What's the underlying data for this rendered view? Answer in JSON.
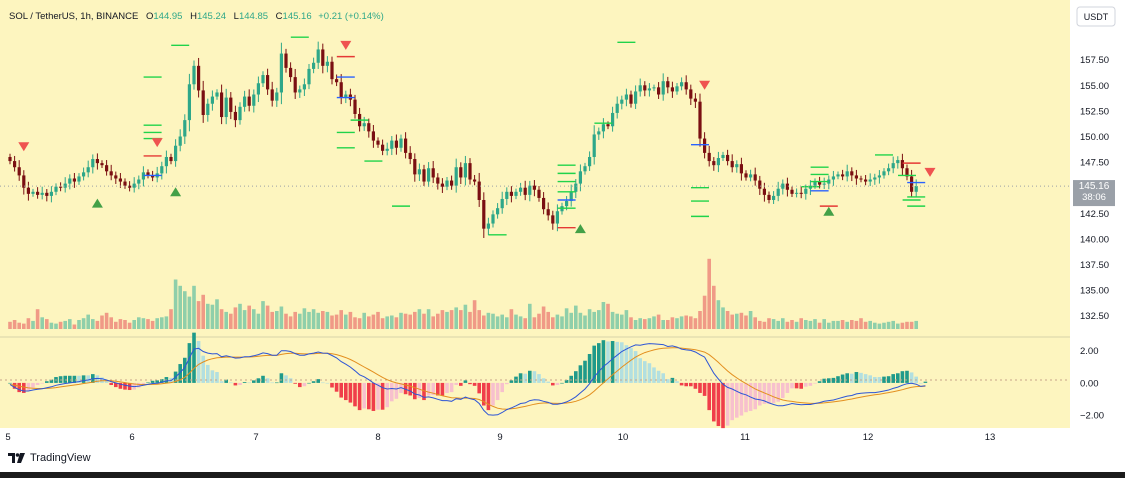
{
  "header": {
    "symbol": "SOL / TetherUS, 1h, BINANCE",
    "open_label": "O",
    "open": "144.95",
    "high_label": "H",
    "high": "145.24",
    "low_label": "L",
    "low": "144.85",
    "close_label": "C",
    "close": "145.16",
    "change": "+0.21 (+0.14%)"
  },
  "currency_button": "USDT",
  "price_tag": {
    "price": "145.16",
    "countdown": "38:06"
  },
  "brand": "TradingView",
  "colors": {
    "background": "#fdf5bf",
    "bull": "#2ea789",
    "bear": "#7a0f12",
    "volume_bull": "#8fcfaa",
    "volume_bear": "#f09a86",
    "macd_line": "#2d55d6",
    "signal_line": "#e38f1f",
    "hist_pos_strong": "#1f9a8a",
    "hist_pos_weak": "#b2dfe0",
    "hist_neg_strong": "#f03e4a",
    "hist_neg_weak": "#f7c0cd",
    "marker_down": "#ef5350",
    "marker_up": "#43a047",
    "level_green": "#1fd34a",
    "level_red": "#e53935",
    "level_blue": "#2962ff",
    "price_tag": "#9aa0a8"
  },
  "chart_data": [
    {
      "type": "candlestick",
      "title": "SOL / TetherUS, 1h, BINANCE",
      "x_ticks": [
        "5",
        "6",
        "7",
        "8",
        "9",
        "10",
        "11",
        "12",
        "13"
      ],
      "y_ticks": [
        "132.50",
        "135.00",
        "137.50",
        "140.00",
        "142.50",
        "145.00",
        "147.50",
        "150.00",
        "152.50",
        "155.00",
        "157.50"
      ],
      "ylim": [
        131.3,
        160.4
      ],
      "last_price": 145.16,
      "closes": [
        147.6,
        147.0,
        146.2,
        145.0,
        144.4,
        144.6,
        144.3,
        144.5,
        144.2,
        144.6,
        145.1,
        145.0,
        145.4,
        145.9,
        145.6,
        146.1,
        146.5,
        147.0,
        147.8,
        147.4,
        147.2,
        146.6,
        146.2,
        145.9,
        145.6,
        145.2,
        145.0,
        145.4,
        145.8,
        146.5,
        146.2,
        146.0,
        146.4,
        147.1,
        148.0,
        147.6,
        149.1,
        150.0,
        151.6,
        155.1,
        156.9,
        154.5,
        152.1,
        153.2,
        153.9,
        154.3,
        151.9,
        153.8,
        152.4,
        151.6,
        152.9,
        153.9,
        153.0,
        154.1,
        155.2,
        156.0,
        154.6,
        153.5,
        154.3,
        158.1,
        156.7,
        155.8,
        154.3,
        154.6,
        155.1,
        156.6,
        157.2,
        158.5,
        156.9,
        157.3,
        155.6,
        155.3,
        153.8,
        154.1,
        153.6,
        152.2,
        151.0,
        151.3,
        150.5,
        149.6,
        149.2,
        148.6,
        148.8,
        149.6,
        148.9,
        149.8,
        148.4,
        147.8,
        146.3,
        146.8,
        145.6,
        146.9,
        146.0,
        145.4,
        145.1,
        145.7,
        145.2,
        147.0,
        146.0,
        147.4,
        145.8,
        145.6,
        143.8,
        141.0,
        141.5,
        142.4,
        143.0,
        143.9,
        144.6,
        144.2,
        144.6,
        145.0,
        144.3,
        145.2,
        144.8,
        144.0,
        142.9,
        142.3,
        141.5,
        142.7,
        143.2,
        143.7,
        144.6,
        145.4,
        146.6,
        147.1,
        148.0,
        150.2,
        150.5,
        151.2,
        151.0,
        152.3,
        153.2,
        153.6,
        154.1,
        153.2,
        154.4,
        155.0,
        154.5,
        154.7,
        154.8,
        154.1,
        155.4,
        154.8,
        154.4,
        154.9,
        155.3,
        154.6,
        153.7,
        153.4,
        149.8,
        148.4,
        147.6,
        147.2,
        147.9,
        148.2,
        147.6,
        147.0,
        147.3,
        146.4,
        146.0,
        146.3,
        145.7,
        144.9,
        144.3,
        143.8,
        144.2,
        144.9,
        145.4,
        144.8,
        144.4,
        144.5,
        144.4,
        144.9,
        145.2,
        145.6,
        145.3,
        145.4,
        145.8,
        146.1,
        146.3,
        146.1,
        146.6,
        146.2,
        145.9,
        145.8,
        145.6,
        145.8,
        146.0,
        146.2,
        146.6,
        146.9,
        147.4,
        147.7,
        146.9,
        146.1,
        144.6,
        145.16
      ]
    },
    {
      "type": "bar",
      "title": "Volume",
      "values": [
        8,
        10,
        7,
        6,
        12,
        9,
        22,
        13,
        11,
        7,
        6,
        8,
        9,
        11,
        5,
        10,
        12,
        16,
        11,
        9,
        15,
        18,
        13,
        8,
        11,
        10,
        7,
        10,
        13,
        12,
        11,
        9,
        12,
        13,
        14,
        22,
        55,
        48,
        42,
        36,
        48,
        31,
        38,
        28,
        27,
        33,
        22,
        19,
        17,
        24,
        28,
        21,
        26,
        22,
        17,
        31,
        26,
        19,
        20,
        25,
        17,
        14,
        19,
        17,
        23,
        19,
        22,
        18,
        20,
        19,
        15,
        16,
        21,
        16,
        19,
        13,
        12,
        18,
        14,
        16,
        19,
        12,
        14,
        15,
        13,
        18,
        17,
        16,
        19,
        22,
        17,
        22,
        14,
        17,
        21,
        19,
        21,
        24,
        21,
        27,
        19,
        32,
        21,
        15,
        18,
        17,
        14,
        16,
        13,
        22,
        16,
        14,
        12,
        28,
        13,
        17,
        25,
        19,
        13,
        16,
        14,
        23,
        18,
        26,
        18,
        15,
        22,
        19,
        21,
        30,
        28,
        19,
        17,
        16,
        21,
        13,
        10,
        12,
        11,
        12,
        14,
        16,
        10,
        10,
        13,
        12,
        14,
        15,
        14,
        12,
        20,
        37,
        78,
        48,
        32,
        24,
        20,
        16,
        17,
        18,
        15,
        20,
        13,
        9,
        8,
        12,
        11,
        9,
        12,
        8,
        10,
        8,
        12,
        10,
        9,
        11,
        7,
        11,
        7,
        9,
        9,
        10,
        8,
        10,
        9,
        12,
        8,
        9,
        7,
        6,
        7,
        8,
        9,
        6,
        7,
        8,
        8,
        9,
        7,
        7,
        8,
        10,
        8,
        8,
        6,
        7,
        5
      ],
      "ylim": [
        0,
        100
      ]
    },
    {
      "type": "line",
      "title": "MACD",
      "y_ticks": [
        "2.00",
        "0.00",
        "−2.00"
      ],
      "ylim": [
        -2.8,
        2.85
      ],
      "series": [
        {
          "values": [
            -0.1,
            -0.28,
            -0.42,
            -0.5,
            -0.5,
            -0.44,
            -0.4,
            -0.36,
            -0.3,
            -0.24,
            -0.15,
            -0.09,
            -0.04,
            0.0,
            0.04,
            0.08,
            0.14,
            0.18,
            0.26,
            0.28,
            0.26,
            0.18,
            0.08,
            0.0,
            -0.08,
            -0.14,
            -0.2,
            -0.23,
            -0.2,
            -0.14,
            -0.09,
            -0.04,
            -0.02,
            0.04,
            0.13,
            0.14,
            0.36,
            0.65,
            0.95,
            1.55,
            2.1,
            2.15,
            1.95,
            1.85,
            1.8,
            1.82,
            1.62,
            1.68,
            1.62,
            1.54,
            1.55,
            1.62,
            1.62,
            1.68,
            1.76,
            1.86,
            1.82,
            1.72,
            1.72,
            2.0,
            2.0,
            1.95,
            1.82,
            1.72,
            1.72,
            1.8,
            1.85,
            1.92,
            1.85,
            1.84,
            1.7,
            1.55,
            1.32,
            1.16,
            0.98,
            0.75,
            0.5,
            0.38,
            0.2,
            0.0,
            -0.14,
            -0.3,
            -0.38,
            -0.35,
            -0.38,
            -0.3,
            -0.4,
            -0.5,
            -0.69,
            -0.75,
            -0.9,
            -0.87,
            -0.93,
            -1.02,
            -1.1,
            -1.1,
            -1.14,
            -0.98,
            -1.02,
            -0.88,
            -0.98,
            -1.04,
            -1.28,
            -1.71,
            -1.98,
            -2.0,
            -1.98,
            -1.84,
            -1.66,
            -1.55,
            -1.42,
            -1.28,
            -1.24,
            -1.1,
            -1.04,
            -1.06,
            -1.14,
            -1.21,
            -1.32,
            -1.32,
            -1.27,
            -1.18,
            -1.04,
            -0.86,
            -0.62,
            -0.38,
            -0.05,
            0.38,
            0.7,
            1.02,
            1.24,
            1.5,
            1.72,
            1.95,
            2.1,
            2.24,
            2.36,
            2.34,
            2.4,
            2.44,
            2.42,
            2.4,
            2.38,
            2.26,
            2.3,
            2.22,
            2.1,
            2.05,
            2.02,
            1.92,
            1.75,
            1.6,
            1.1,
            0.6,
            0.24,
            -0.08,
            -0.28,
            -0.38,
            -0.52,
            -0.66,
            -0.74,
            -0.88,
            -1.0,
            -1.04,
            -1.12,
            -1.24,
            -1.34,
            -1.42,
            -1.42,
            -1.36,
            -1.28,
            -1.32,
            -1.36,
            -1.34,
            -1.34,
            -1.28,
            -1.22,
            -1.14,
            -1.1,
            -1.06,
            -0.98,
            -0.9,
            -0.82,
            -0.78,
            -0.68,
            -0.64,
            -0.62,
            -0.6,
            -0.6,
            -0.56,
            -0.5,
            -0.44,
            -0.34,
            -0.26,
            -0.14,
            -0.05,
            -0.02,
            -0.08,
            -0.22,
            -0.18
          ]
        },
        {
          "values": [
            -0.1,
            -0.14,
            -0.2,
            -0.26,
            -0.31,
            -0.33,
            -0.35,
            -0.35,
            -0.34,
            -0.32,
            -0.29,
            -0.25,
            -0.21,
            -0.17,
            -0.13,
            -0.09,
            -0.04,
            0.0,
            0.05,
            0.1,
            0.13,
            0.14,
            0.13,
            0.1,
            0.06,
            0.02,
            -0.03,
            -0.07,
            -0.09,
            -0.1,
            -0.1,
            -0.09,
            -0.08,
            -0.05,
            -0.01,
            0.02,
            0.09,
            0.2,
            0.35,
            0.6,
            0.9,
            1.15,
            1.3,
            1.42,
            1.5,
            1.56,
            1.58,
            1.6,
            1.61,
            1.6,
            1.6,
            1.6,
            1.61,
            1.62,
            1.65,
            1.69,
            1.71,
            1.71,
            1.71,
            1.77,
            1.82,
            1.84,
            1.84,
            1.82,
            1.8,
            1.8,
            1.81,
            1.83,
            1.84,
            1.84,
            1.81,
            1.76,
            1.67,
            1.57,
            1.45,
            1.31,
            1.15,
            0.99,
            0.83,
            0.67,
            0.5,
            0.34,
            0.2,
            0.09,
            0.0,
            -0.06,
            -0.13,
            -0.2,
            -0.3,
            -0.39,
            -0.49,
            -0.57,
            -0.64,
            -0.72,
            -0.8,
            -0.86,
            -0.92,
            -0.93,
            -0.95,
            -0.94,
            -0.95,
            -0.97,
            -1.03,
            -1.17,
            -1.33,
            -1.46,
            -1.57,
            -1.62,
            -1.63,
            -1.61,
            -1.57,
            -1.51,
            -1.46,
            -1.39,
            -1.32,
            -1.27,
            -1.25,
            -1.24,
            -1.26,
            -1.27,
            -1.27,
            -1.25,
            -1.21,
            -1.14,
            -1.04,
            -0.91,
            -0.74,
            -0.51,
            -0.25,
            0.0,
            0.25,
            0.5,
            0.74,
            0.98,
            1.2,
            1.41,
            1.6,
            1.75,
            1.88,
            1.97,
            2.05,
            2.11,
            2.15,
            2.17,
            2.18,
            2.18,
            2.16,
            2.13,
            2.1,
            2.06,
            1.99,
            1.91,
            1.75,
            1.52,
            1.27,
            1.0,
            0.74,
            0.51,
            0.31,
            0.12,
            -0.04,
            -0.21,
            -0.37,
            -0.5,
            -0.62,
            -0.74,
            -0.86,
            -0.97,
            -1.06,
            -1.12,
            -1.15,
            -1.19,
            -1.22,
            -1.25,
            -1.27,
            -1.27,
            -1.26,
            -1.24,
            -1.21,
            -1.18,
            -1.14,
            -1.1,
            -1.05,
            -1.0,
            -0.94,
            -0.88,
            -0.83,
            -0.78,
            -0.74,
            -0.7,
            -0.65,
            -0.6,
            -0.55,
            -0.49,
            -0.42,
            -0.34,
            -0.27,
            -0.23,
            -0.22,
            -0.21
          ]
        }
      ]
    }
  ]
}
